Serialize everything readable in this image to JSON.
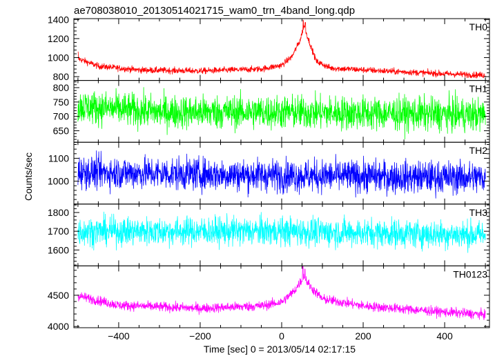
{
  "chart_data": {
    "type": "line",
    "title": "ae708038010_20130514021715_wam0_trn_4band_long.qdp",
    "xlabel": "Time [sec] 0 = 2013/05/14 02:17:15",
    "ylabel": "Counts/sec",
    "xlim": [
      -510,
      510
    ],
    "x_ticks": [
      -400,
      -200,
      0,
      200,
      400
    ],
    "x_tick_labels": [
      "−400",
      "−200",
      "0",
      "200",
      "400"
    ],
    "panels": [
      {
        "name": "TH0",
        "color": "#ff0000",
        "ylim": [
          760,
          1410
        ],
        "y_ticks": [
          800,
          1000,
          1200,
          1400
        ],
        "baseline": [
          [
            -500,
            990
          ],
          [
            -450,
            910
          ],
          [
            -350,
            870
          ],
          [
            -200,
            860
          ],
          [
            -50,
            880
          ],
          [
            0,
            920
          ],
          [
            25,
            1010
          ],
          [
            45,
            1180
          ],
          [
            55,
            1340
          ],
          [
            65,
            1200
          ],
          [
            85,
            960
          ],
          [
            120,
            890
          ],
          [
            250,
            860
          ],
          [
            400,
            830
          ],
          [
            500,
            815
          ]
        ],
        "noise": 32,
        "spikes": [
          [
            -500,
            1060
          ],
          [
            53,
            1395
          ],
          [
            58,
            1370
          ]
        ]
      },
      {
        "name": "TH1",
        "color": "#00ff00",
        "ylim": [
          610,
          825
        ],
        "y_ticks": [
          650,
          700,
          750,
          800
        ],
        "baseline": [
          [
            -500,
            735
          ],
          [
            -300,
            715
          ],
          [
            0,
            715
          ],
          [
            250,
            710
          ],
          [
            500,
            705
          ]
        ],
        "noise": 58,
        "spikes": []
      },
      {
        "name": "TH2",
        "color": "#0000ff",
        "ylim": [
          900,
          1170
        ],
        "y_ticks": [
          1000,
          1100
        ],
        "baseline": [
          [
            -500,
            1040
          ],
          [
            0,
            1025
          ],
          [
            500,
            1015
          ]
        ],
        "noise": 70,
        "spikes": []
      },
      {
        "name": "TH3",
        "color": "#00ffff",
        "ylim": [
          1515,
          1845
        ],
        "y_ticks": [
          1600,
          1700,
          1800
        ],
        "baseline": [
          [
            -500,
            1700
          ],
          [
            0,
            1700
          ],
          [
            500,
            1680
          ]
        ],
        "noise": 75,
        "spikes": []
      },
      {
        "name": "TH0123",
        "color": "#ff00ff",
        "ylim": [
          3980,
          4970
        ],
        "y_ticks": [
          4000,
          4500
        ],
        "baseline": [
          [
            -500,
            4490
          ],
          [
            -400,
            4340
          ],
          [
            -200,
            4290
          ],
          [
            -50,
            4330
          ],
          [
            0,
            4390
          ],
          [
            30,
            4560
          ],
          [
            55,
            4800
          ],
          [
            70,
            4640
          ],
          [
            100,
            4440
          ],
          [
            200,
            4330
          ],
          [
            400,
            4230
          ],
          [
            500,
            4190
          ]
        ],
        "noise": 75,
        "spikes": [
          [
            52,
            4960
          ],
          [
            57,
            4920
          ]
        ]
      }
    ],
    "n_points": 1700
  }
}
